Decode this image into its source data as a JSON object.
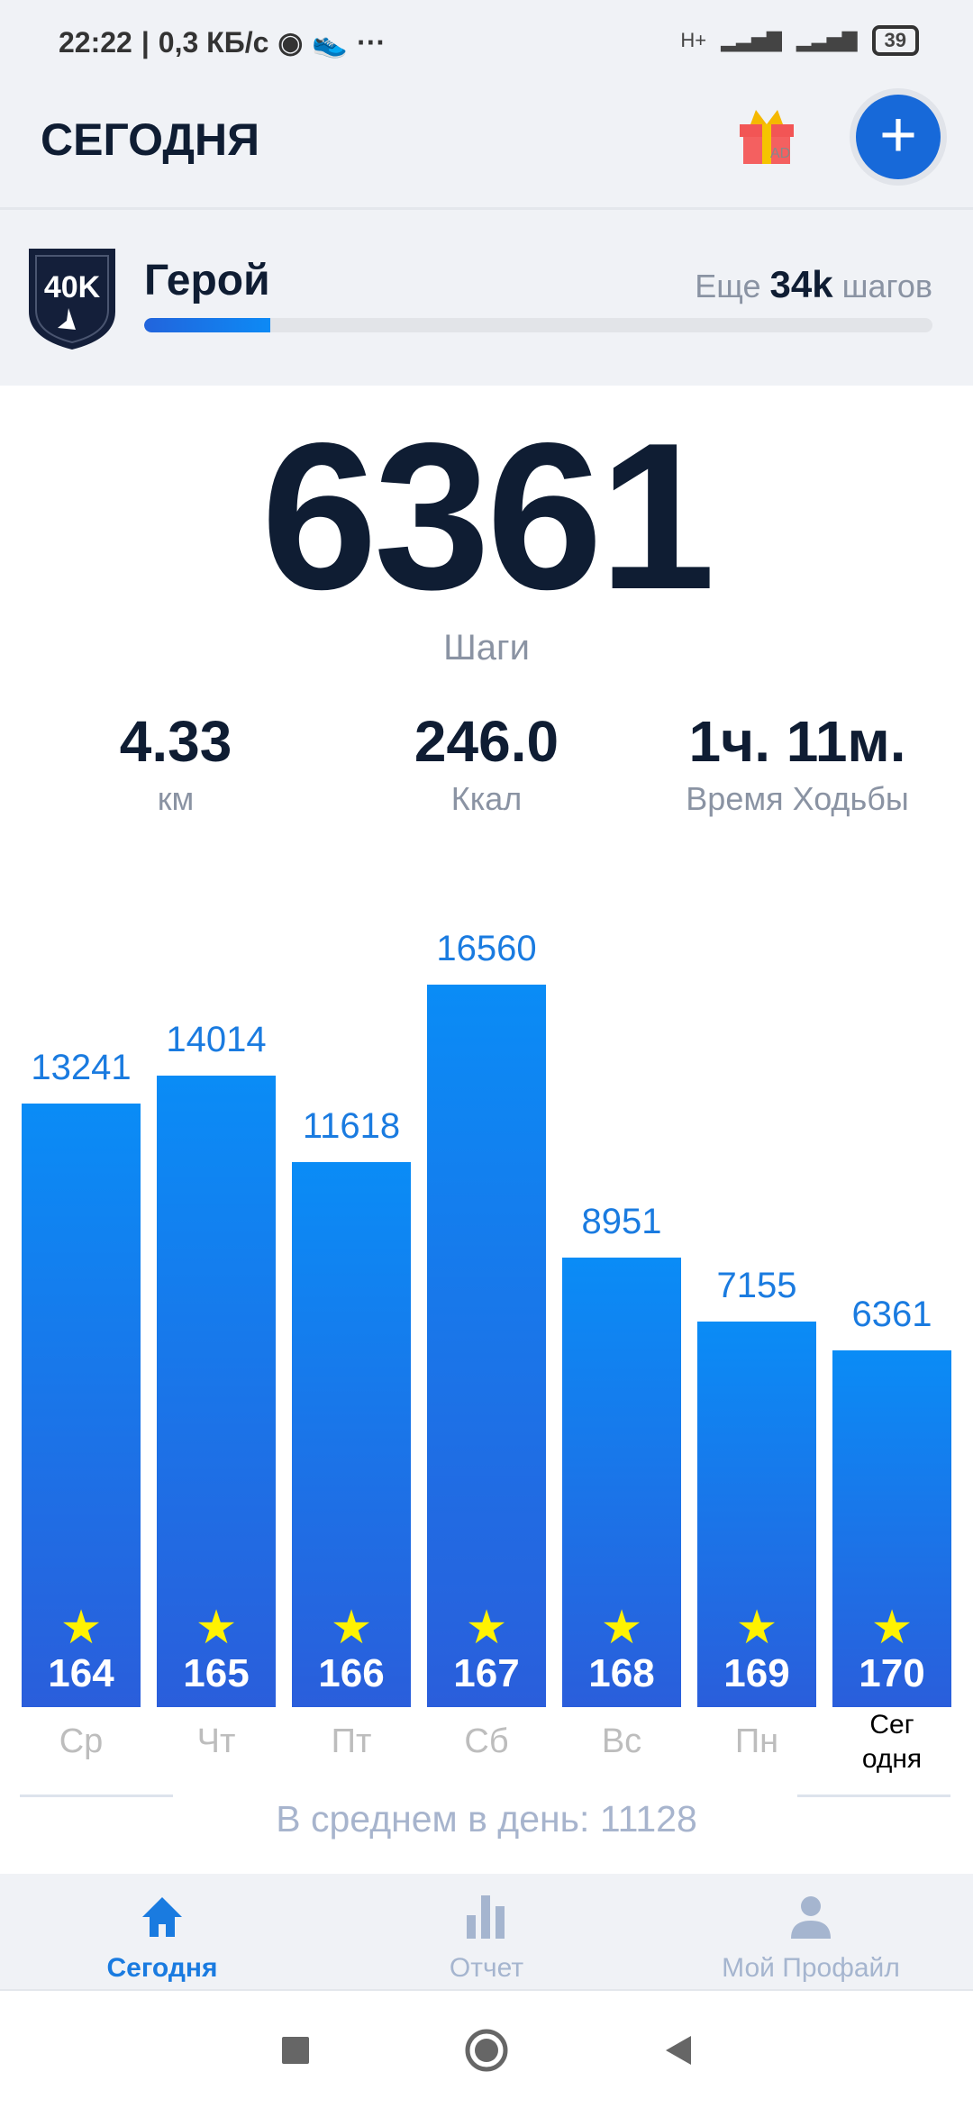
{
  "status_bar": {
    "time": "22:22",
    "speed": "0,3 КБ/с",
    "network": "H+",
    "battery": "39"
  },
  "header": {
    "title": "СЕГОДНЯ",
    "gift_badge": "AD"
  },
  "level": {
    "badge": "40K",
    "name": "Герой",
    "remaining_prefix": "Еще",
    "remaining_value": "34k",
    "remaining_suffix": "шагов",
    "progress": 0.16
  },
  "today": {
    "steps": "6361",
    "steps_label": "Шаги"
  },
  "stats": [
    {
      "value": "4.33",
      "label": "км"
    },
    {
      "value": "246.0",
      "label": "Ккал"
    },
    {
      "value": "1ч. 11м.",
      "label": "Время Ходьбы"
    }
  ],
  "chart_data": {
    "type": "bar",
    "categories": [
      "Ср",
      "Чт",
      "Пт",
      "Сб",
      "Вс",
      "Пн",
      "Сег одня"
    ],
    "values": [
      13241,
      14014,
      11618,
      16560,
      8951,
      7155,
      6361
    ],
    "star_counts": [
      "164",
      "165",
      "166",
      "167",
      "168",
      "169",
      "170"
    ],
    "value_labels": [
      "13241",
      "14014",
      "11618",
      "16560",
      "8951",
      "7155",
      "6361"
    ],
    "colors": {
      "bar_top": "#0a8cf6",
      "bar_bottom": "#2a5edb",
      "star": "#fff200"
    }
  },
  "average": "В среднем в день: 11128",
  "nav": [
    {
      "label": "Сегодня",
      "icon": "home-icon",
      "active": true
    },
    {
      "label": "Отчет",
      "icon": "bar-chart-icon",
      "active": false
    },
    {
      "label": "Мой Профайл",
      "icon": "profile-icon",
      "active": false
    }
  ]
}
